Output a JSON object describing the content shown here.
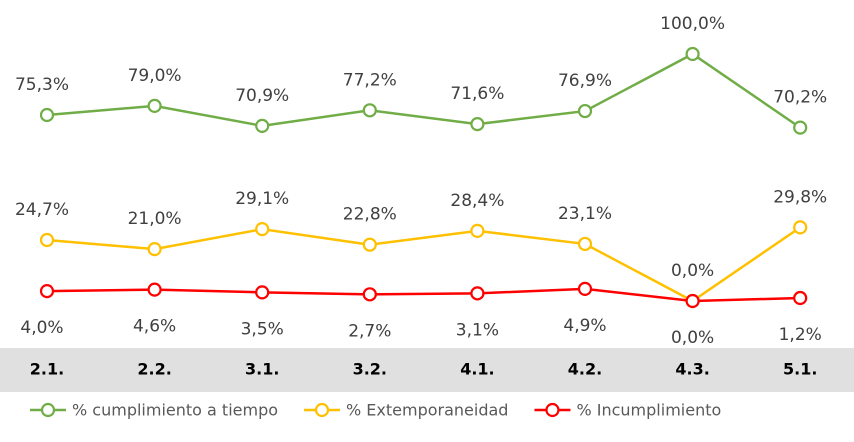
{
  "chart_data": {
    "type": "line",
    "categories": [
      "2.1.",
      "2.2.",
      "3.1.",
      "3.2.",
      "4.1.",
      "4.2.",
      "4.3.",
      "5.1."
    ],
    "ylim": [
      0,
      100
    ],
    "series": [
      {
        "name": "% cumplimiento a tiempo",
        "color": "#70ad47",
        "values": [
          75.3,
          79.0,
          70.9,
          77.2,
          71.6,
          76.9,
          100.0,
          70.2
        ],
        "value_labels": [
          "75,3%",
          "79,0%",
          "70,9%",
          "77,2%",
          "71,6%",
          "76,9%",
          "100,0%",
          "70,2%"
        ]
      },
      {
        "name": "% Extemporaneidad",
        "color": "#ffc000",
        "values": [
          24.7,
          21.0,
          29.1,
          22.8,
          28.4,
          23.1,
          0.0,
          29.8
        ],
        "value_labels": [
          "24,7%",
          "21,0%",
          "29,1%",
          "22,8%",
          "28,4%",
          "23,1%",
          "0,0%",
          "29,8%"
        ]
      },
      {
        "name": "% Incumplimiento",
        "color": "#ff0000",
        "values": [
          4.0,
          4.6,
          3.5,
          2.7,
          3.1,
          4.9,
          0.0,
          1.2
        ],
        "value_labels": [
          "4,0%",
          "4,6%",
          "3,5%",
          "2,7%",
          "3,1%",
          "4,9%",
          "0,0%",
          "1,2%"
        ]
      }
    ],
    "legend": "bottom"
  }
}
